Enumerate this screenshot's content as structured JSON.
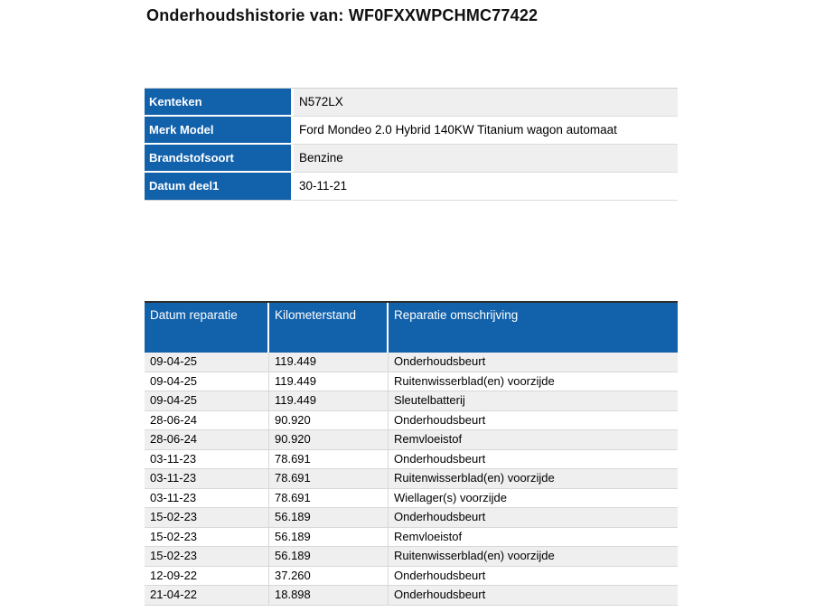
{
  "page": {
    "title": "Onderhoudshistorie van: WF0FXXWPCHMC77422"
  },
  "vehicle_info": {
    "rows": [
      {
        "label": "Kenteken",
        "value": "N572LX"
      },
      {
        "label": "Merk Model",
        "value": "Ford Mondeo 2.0 Hybrid 140KW Titanium wagon automaat"
      },
      {
        "label": "Brandstofsoort",
        "value": "Benzine"
      },
      {
        "label": "Datum deel1",
        "value": "30-11-21"
      }
    ]
  },
  "maintenance_history": {
    "columns": [
      "Datum reparatie",
      "Kilometerstand",
      "Reparatie omschrijving"
    ],
    "rows": [
      [
        "09-04-25",
        "119.449",
        "Onderhoudsbeurt"
      ],
      [
        "09-04-25",
        "119.449",
        "Ruitenwisserblad(en) voorzijde"
      ],
      [
        "09-04-25",
        "119.449",
        "Sleutelbatterij"
      ],
      [
        "28-06-24",
        "90.920",
        "Onderhoudsbeurt"
      ],
      [
        "28-06-24",
        "90.920",
        "Remvloeistof"
      ],
      [
        "03-11-23",
        "78.691",
        "Onderhoudsbeurt"
      ],
      [
        "03-11-23",
        "78.691",
        "Ruitenwisserblad(en) voorzijde"
      ],
      [
        "03-11-23",
        "78.691",
        "Wiellager(s) voorzijde"
      ],
      [
        "15-02-23",
        "56.189",
        "Onderhoudsbeurt"
      ],
      [
        "15-02-23",
        "56.189",
        "Remvloeistof"
      ],
      [
        "15-02-23",
        "56.189",
        "Ruitenwisserblad(en) voorzijde"
      ],
      [
        "12-09-22",
        "37.260",
        "Onderhoudsbeurt"
      ],
      [
        "21-04-22",
        "18.898",
        "Onderhoudsbeurt"
      ]
    ]
  },
  "colors": {
    "header_blue": "#1261ab",
    "stripe_gray": "#efefef",
    "row_white": "#ffffff",
    "border_light": "#d8d8d8",
    "history_top_border": "#2e2e2e",
    "header_text": "#ffffff",
    "body_text": "#000000"
  }
}
